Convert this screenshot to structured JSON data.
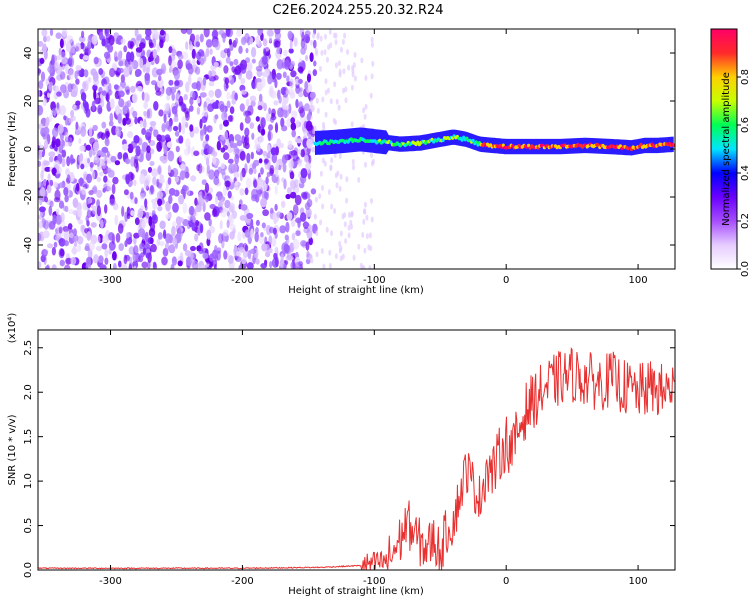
{
  "chart_data": [
    {
      "type": "heatmap",
      "title": "C2E6.2024.255.20.32.R24",
      "xlabel": "Height of straight line (km)",
      "ylabel": "Frequency (Hz)",
      "xlim": [
        -355,
        128
      ],
      "ylim": [
        -50,
        50
      ],
      "xticks": [
        "-300",
        "-200",
        "-100",
        "0",
        "100"
      ],
      "yticks": [
        "-40",
        "-20",
        "0",
        "20",
        "40"
      ],
      "colorbar": {
        "label": "Normalized spectral amplitude",
        "range": [
          0,
          1
        ],
        "ticks": [
          "0.0",
          "0.2",
          "0.4",
          "0.6",
          "0.8"
        ],
        "colors": [
          "#ffffff",
          "#e6ccff",
          "#a64dff",
          "#6a00ff",
          "#0000ff",
          "#00e5ff",
          "#00ff55",
          "#c8ff00",
          "#ffd000",
          "#ff2a2a",
          "#ff0066"
        ]
      },
      "ridge_x": [
        -145,
        -130,
        -110,
        -95,
        -80,
        -65,
        -50,
        -40,
        -30,
        -20,
        -10,
        0,
        20,
        40,
        60,
        80,
        95,
        105,
        115,
        128
      ],
      "ridge_y": [
        2.5,
        3,
        4,
        3,
        2,
        2.5,
        4,
        5,
        4,
        2,
        1.5,
        1,
        1,
        1,
        1.5,
        1,
        0.5,
        1.5,
        1.5,
        2
      ]
    },
    {
      "type": "line",
      "title": "",
      "xlabel": "Height of straight line (km)",
      "ylabel": "SNR (10 * v/v)",
      "y_multiplier": "(x10⁴)",
      "xlim": [
        -355,
        128
      ],
      "ylim": [
        0,
        2.7
      ],
      "xticks": [
        "-300",
        "-200",
        "-100",
        "0",
        "100"
      ],
      "yticks": [
        "0.0",
        "0.5",
        "1.0",
        "1.5",
        "2.0",
        "2.5"
      ],
      "color": "#e83030",
      "x": [
        -355,
        -300,
        -200,
        -140,
        -110,
        -100,
        -90,
        -80,
        -75,
        -70,
        -65,
        -60,
        -55,
        -50,
        -45,
        -40,
        -35,
        -30,
        -25,
        -20,
        -15,
        -10,
        -5,
        0,
        5,
        10,
        15,
        20,
        30,
        40,
        50,
        60,
        70,
        80,
        90,
        100,
        110,
        120,
        128
      ],
      "y": [
        0.02,
        0.02,
        0.02,
        0.03,
        0.05,
        0.07,
        0.1,
        0.35,
        0.55,
        0.4,
        0.3,
        0.25,
        0.35,
        0.2,
        0.45,
        0.55,
        0.85,
        1.15,
        0.95,
        0.8,
        1.15,
        1.1,
        1.3,
        1.45,
        1.35,
        1.6,
        1.8,
        1.9,
        2.05,
        2.15,
        2.2,
        2.15,
        2.1,
        2.15,
        2.05,
        2.0,
        2.05,
        2.0,
        2.1
      ]
    }
  ]
}
